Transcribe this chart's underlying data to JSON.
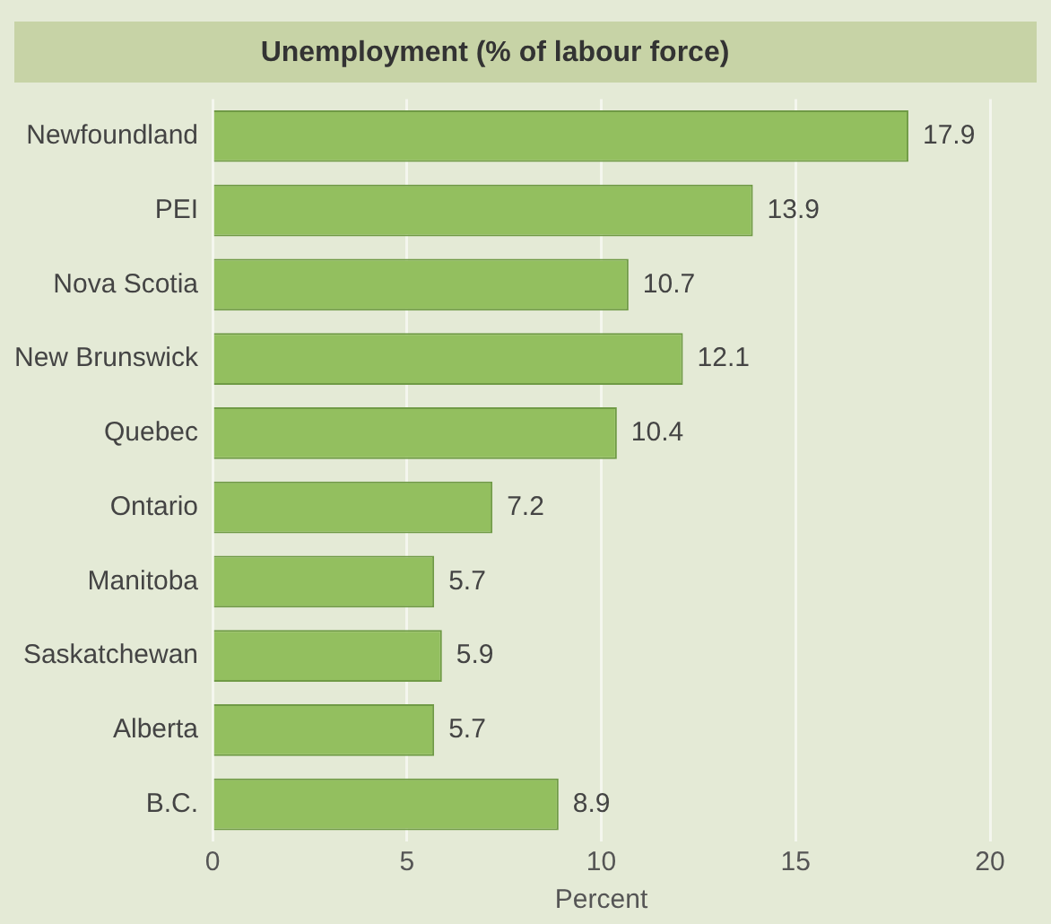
{
  "chart_data": {
    "type": "bar",
    "orientation": "horizontal",
    "title": "Unemployment (% of labour force)",
    "xlabel": "Percent",
    "categories": [
      "Newfoundland",
      "PEI",
      "Nova Scotia",
      "New Brunswick",
      "Quebec",
      "Ontario",
      "Manitoba",
      "Saskatchewan",
      "Alberta",
      "B.C."
    ],
    "values": [
      17.9,
      13.9,
      10.7,
      12.1,
      10.4,
      7.2,
      5.7,
      5.9,
      5.7,
      8.9
    ],
    "color": "#93bf5f",
    "xlim": [
      0,
      20
    ],
    "xticks": [
      0,
      5,
      10,
      15,
      20
    ],
    "grid": "x",
    "data_labels": true,
    "legend": false
  }
}
